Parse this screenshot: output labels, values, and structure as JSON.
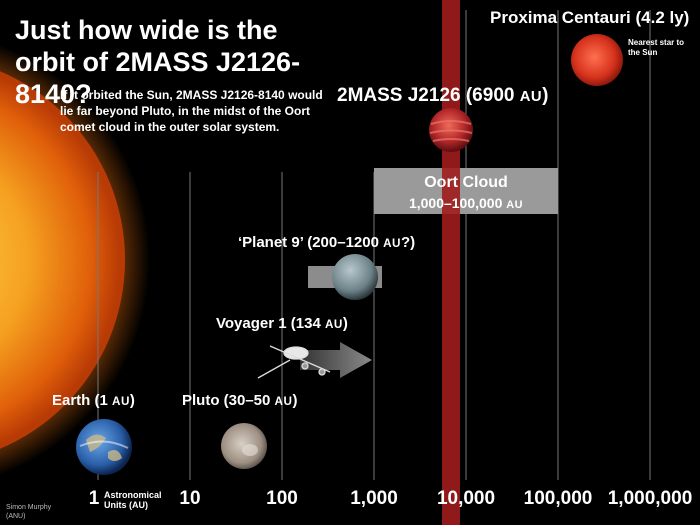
{
  "title": "Just how wide is the orbit of 2MASS J2126-8140?",
  "intro": "If it orbited the Sun, 2MASS J2126-8140 would lie far beyond Pluto, in the midst of the Oort comet cloud in the outer solar system.",
  "axis": {
    "ticks": [
      "1",
      "10",
      "100",
      "1,000",
      "10,000",
      "100,000",
      "1,000,000"
    ],
    "unit_label": "Astronomical Units (AU)"
  },
  "objects": {
    "earth": {
      "name": "Earth (1 ",
      "unit": "AU",
      "close": ")"
    },
    "pluto": {
      "name": "Pluto (30–50 ",
      "unit": "AU",
      "close": ")"
    },
    "voyager": {
      "name": "Voyager 1 (134 ",
      "unit": "AU",
      "close": ")"
    },
    "planet9": {
      "name": "‘Planet 9’ (200–1200 ",
      "unit": "AU",
      "close": "?)"
    },
    "oort": {
      "name": "Oort Cloud",
      "range": "1,000–100,000 ",
      "unit": "AU"
    },
    "mass": {
      "name": "2MASS J2126 (6900 ",
      "unit": "AU",
      "close": ")"
    },
    "proxima": {
      "name": "Proxima Centauri (4.2 ly)",
      "note": "Nearest star to the Sun"
    }
  },
  "credit": "Simon Murphy (ANU)",
  "colors": {
    "background": "#000000",
    "highlight_band": "#a01c1c",
    "oort_box": "#9a9a9a",
    "sun": "#f08a10"
  }
}
